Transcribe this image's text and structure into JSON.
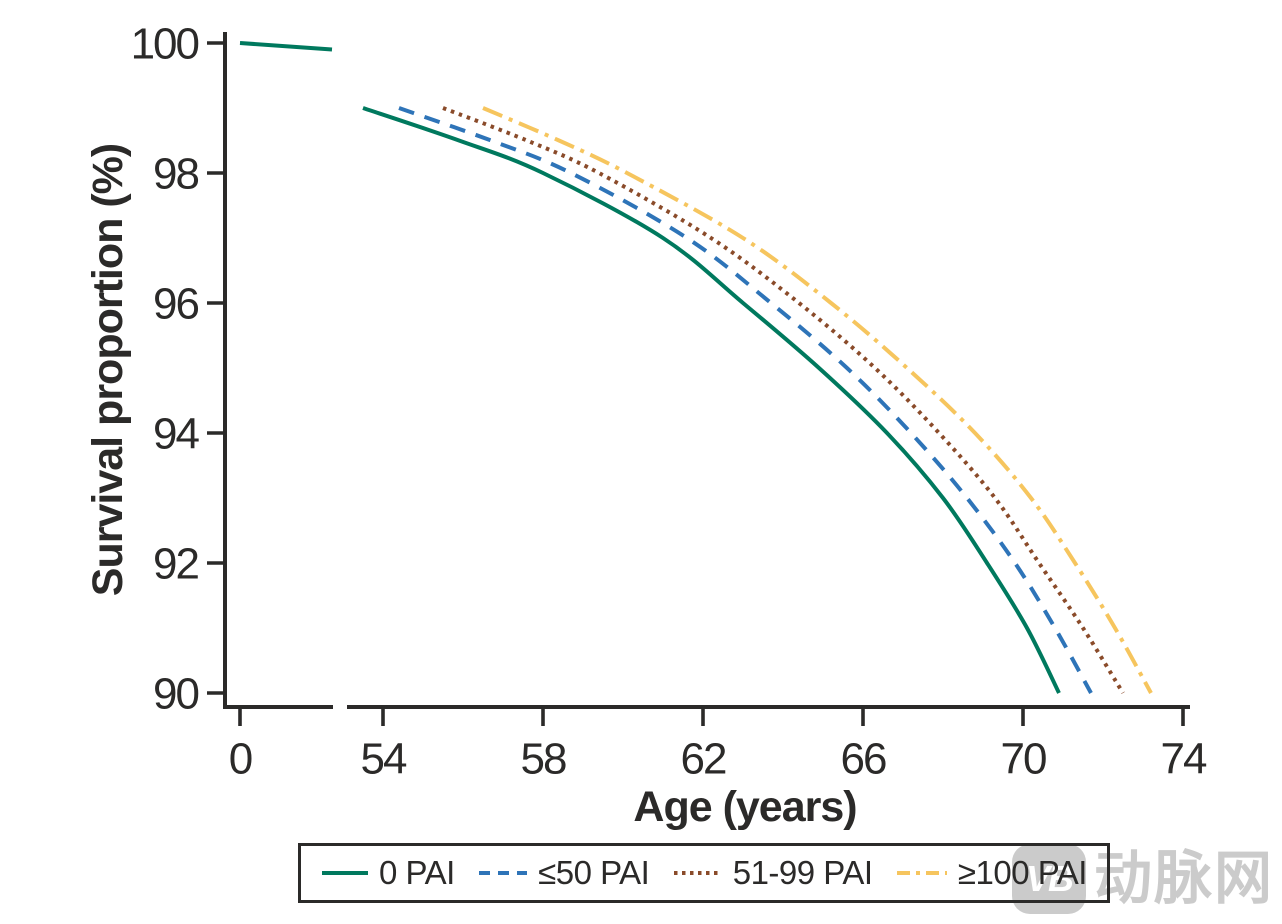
{
  "watermark": {
    "logo": "VB",
    "text": "动脉网",
    "color": "#cbcbcb"
  },
  "chart_data": {
    "type": "line",
    "title": "",
    "xlabel": "Age (years)",
    "ylabel": "Survival proportion (%)",
    "x_axis": {
      "ticks": [
        0,
        54,
        58,
        62,
        66,
        70,
        74
      ],
      "axis_break": true,
      "break_between": [
        0,
        54
      ]
    },
    "y_axis": {
      "ticks": [
        100,
        98,
        96,
        94,
        92,
        90
      ],
      "range": [
        90,
        100
      ]
    },
    "grid": false,
    "legend_position": "bottom-boxed",
    "ink_color": "#2b2a29",
    "series": [
      {
        "name": "0 PAI",
        "color": "#00795e",
        "style": "solid",
        "intro_segment": [
          [
            0,
            100.0
          ],
          [
            50,
            99.9
          ]
        ],
        "points": [
          [
            53.5,
            99.0
          ],
          [
            55.9,
            98.5
          ],
          [
            58.0,
            98.0
          ],
          [
            61.0,
            97.0
          ],
          [
            63.0,
            96.0
          ],
          [
            64.9,
            95.0
          ],
          [
            66.6,
            94.0
          ],
          [
            68.0,
            93.0
          ],
          [
            69.1,
            92.0
          ],
          [
            70.1,
            91.0
          ],
          [
            70.9,
            90.0
          ]
        ]
      },
      {
        "name": "≤50 PAI",
        "color": "#2e74b8",
        "style": "dashed",
        "points": [
          [
            54.4,
            99.0
          ],
          [
            56.7,
            98.5
          ],
          [
            58.7,
            98.0
          ],
          [
            61.6,
            97.0
          ],
          [
            63.7,
            96.0
          ],
          [
            65.6,
            95.0
          ],
          [
            67.2,
            94.0
          ],
          [
            68.6,
            93.0
          ],
          [
            69.8,
            92.0
          ],
          [
            70.8,
            91.0
          ],
          [
            71.7,
            90.0
          ]
        ]
      },
      {
        "name": "51-99 PAI",
        "color": "#8a4b2a",
        "style": "dotted",
        "points": [
          [
            55.5,
            99.0
          ],
          [
            57.6,
            98.5
          ],
          [
            59.4,
            98.0
          ],
          [
            62.2,
            97.0
          ],
          [
            64.4,
            96.0
          ],
          [
            66.3,
            95.0
          ],
          [
            67.9,
            94.0
          ],
          [
            69.3,
            93.0
          ],
          [
            70.4,
            92.0
          ],
          [
            71.5,
            91.0
          ],
          [
            72.5,
            90.0
          ]
        ]
      },
      {
        "name": "≥100 PAI",
        "color": "#f6c55e",
        "style": "dashdot",
        "points": [
          [
            56.5,
            99.0
          ],
          [
            58.4,
            98.5
          ],
          [
            60.1,
            98.0
          ],
          [
            63.0,
            97.0
          ],
          [
            65.2,
            96.0
          ],
          [
            67.1,
            95.0
          ],
          [
            68.8,
            94.0
          ],
          [
            70.2,
            93.0
          ],
          [
            71.3,
            92.0
          ],
          [
            72.3,
            91.0
          ],
          [
            73.2,
            90.0
          ]
        ]
      }
    ]
  }
}
